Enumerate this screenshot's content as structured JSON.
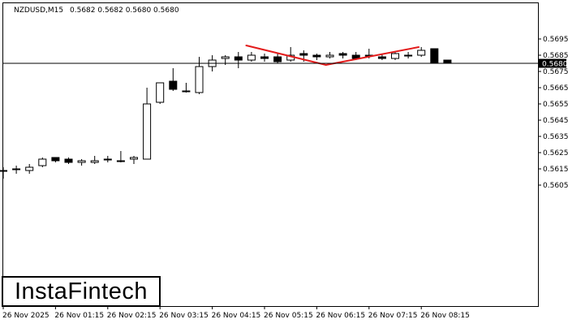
{
  "header": {
    "symbol": "NZDUSD,M15",
    "ohlc": "0.5682 0.5682 0.5680 0.5680"
  },
  "logo": {
    "text": "InstaFintech"
  },
  "colors": {
    "background": "#ffffff",
    "grid_frame": "#000000",
    "bull_body": "#ffffff",
    "bear_body": "#000000",
    "pattern_line": "#e31b1b",
    "price_tag_bg": "#000000",
    "price_tag_text": "#ffffff"
  },
  "chart_data": {
    "type": "candlestick",
    "pattern": "double top",
    "ylim": [
      0.56,
      0.57
    ],
    "y_ticks": [
      "0.5695",
      "0.5685",
      "0.5675",
      "0.5665",
      "0.5655",
      "0.5645",
      "0.5635",
      "0.5625",
      "0.5615",
      "0.5605"
    ],
    "x_ticks": [
      "26 Nov 2025",
      "26 Nov 01:15",
      "26 Nov 02:15",
      "26 Nov 03:15",
      "26 Nov 04:15",
      "26 Nov 05:15",
      "26 Nov 06:15",
      "26 Nov 07:15",
      "26 Nov 08:15"
    ],
    "current_price": "0.5680",
    "candles": [
      {
        "o": 0.5614,
        "h": 0.5616,
        "l": 0.5609,
        "c": 0.5614
      },
      {
        "o": 0.5615,
        "h": 0.5617,
        "l": 0.5612,
        "c": 0.5615
      },
      {
        "o": 0.5614,
        "h": 0.5618,
        "l": 0.5612,
        "c": 0.5616
      },
      {
        "o": 0.5617,
        "h": 0.5622,
        "l": 0.5616,
        "c": 0.5621
      },
      {
        "o": 0.5622,
        "h": 0.5622,
        "l": 0.5619,
        "c": 0.562
      },
      {
        "o": 0.5621,
        "h": 0.5622,
        "l": 0.5618,
        "c": 0.5619
      },
      {
        "o": 0.5619,
        "h": 0.5621,
        "l": 0.5617,
        "c": 0.562
      },
      {
        "o": 0.5619,
        "h": 0.5623,
        "l": 0.5618,
        "c": 0.562
      },
      {
        "o": 0.5621,
        "h": 0.5623,
        "l": 0.5619,
        "c": 0.5621
      },
      {
        "o": 0.562,
        "h": 0.5626,
        "l": 0.5619,
        "c": 0.562
      },
      {
        "o": 0.5621,
        "h": 0.5623,
        "l": 0.5618,
        "c": 0.5622
      },
      {
        "o": 0.5621,
        "h": 0.5665,
        "l": 0.5621,
        "c": 0.5655
      },
      {
        "o": 0.5656,
        "h": 0.5668,
        "l": 0.5655,
        "c": 0.5668
      },
      {
        "o": 0.5669,
        "h": 0.5677,
        "l": 0.5663,
        "c": 0.5664
      },
      {
        "o": 0.5663,
        "h": 0.5668,
        "l": 0.5662,
        "c": 0.5663
      },
      {
        "o": 0.5662,
        "h": 0.5684,
        "l": 0.5661,
        "c": 0.5678
      },
      {
        "o": 0.5678,
        "h": 0.5685,
        "l": 0.5675,
        "c": 0.5682
      },
      {
        "o": 0.5683,
        "h": 0.5685,
        "l": 0.5679,
        "c": 0.5684
      },
      {
        "o": 0.5684,
        "h": 0.5687,
        "l": 0.5677,
        "c": 0.5682
      },
      {
        "o": 0.5682,
        "h": 0.5687,
        "l": 0.5681,
        "c": 0.5685
      },
      {
        "o": 0.5684,
        "h": 0.5686,
        "l": 0.5681,
        "c": 0.5683
      },
      {
        "o": 0.5684,
        "h": 0.5686,
        "l": 0.568,
        "c": 0.5681
      },
      {
        "o": 0.5682,
        "h": 0.569,
        "l": 0.5681,
        "c": 0.5685
      },
      {
        "o": 0.5686,
        "h": 0.5688,
        "l": 0.5681,
        "c": 0.5685
      },
      {
        "o": 0.5685,
        "h": 0.5686,
        "l": 0.5682,
        "c": 0.5684
      },
      {
        "o": 0.5684,
        "h": 0.5687,
        "l": 0.5683,
        "c": 0.5685
      },
      {
        "o": 0.5686,
        "h": 0.5687,
        "l": 0.5683,
        "c": 0.5685
      },
      {
        "o": 0.5685,
        "h": 0.5687,
        "l": 0.5682,
        "c": 0.5683
      },
      {
        "o": 0.5685,
        "h": 0.5689,
        "l": 0.5683,
        "c": 0.5685
      },
      {
        "o": 0.5684,
        "h": 0.5686,
        "l": 0.5682,
        "c": 0.5683
      },
      {
        "o": 0.5683,
        "h": 0.5687,
        "l": 0.5682,
        "c": 0.5686
      },
      {
        "o": 0.5685,
        "h": 0.5687,
        "l": 0.5683,
        "c": 0.5685
      },
      {
        "o": 0.5685,
        "h": 0.569,
        "l": 0.5684,
        "c": 0.5688
      },
      {
        "o": 0.5689,
        "h": 0.5689,
        "l": 0.568,
        "c": 0.568
      },
      {
        "o": 0.5682,
        "h": 0.5682,
        "l": 0.568,
        "c": 0.568
      }
    ],
    "pattern_points": [
      {
        "i": 18.6,
        "y": 0.5691
      },
      {
        "i": 24.7,
        "y": 0.5679
      },
      {
        "i": 31.8,
        "y": 0.569
      }
    ]
  }
}
